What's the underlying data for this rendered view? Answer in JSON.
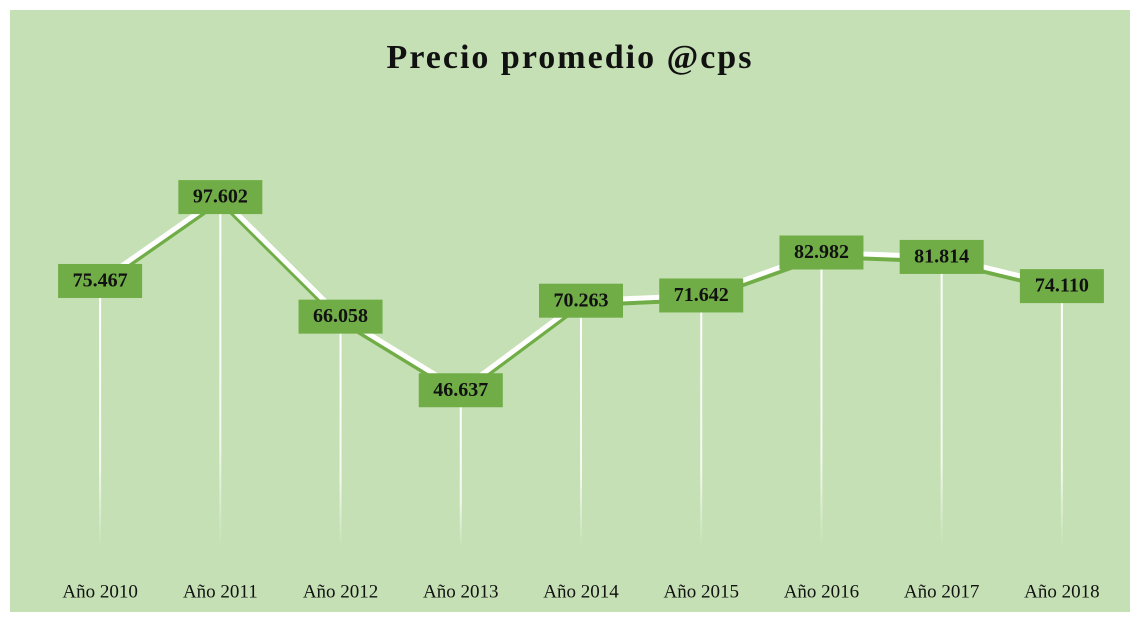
{
  "chart_data": {
    "type": "line",
    "title": "Precio promedio @cps",
    "categories": [
      "Año 2010",
      "Año 2011",
      "Año 2012",
      "Año 2013",
      "Año 2014",
      "Año 2015",
      "Año 2016",
      "Año 2017",
      "Año 2018"
    ],
    "series": [
      {
        "color": "#ffffff",
        "values": [
          75.467,
          97.602,
          66.058,
          46.637,
          70.263,
          71.642,
          82.982,
          81.814,
          74.11
        ],
        "value_labels": [
          "75.467",
          "97.602",
          "66.058",
          "46.637",
          "70.263",
          "71.642",
          "82.982",
          "81.814",
          "74.110"
        ]
      }
    ],
    "ylim": [
      0,
      100
    ]
  }
}
